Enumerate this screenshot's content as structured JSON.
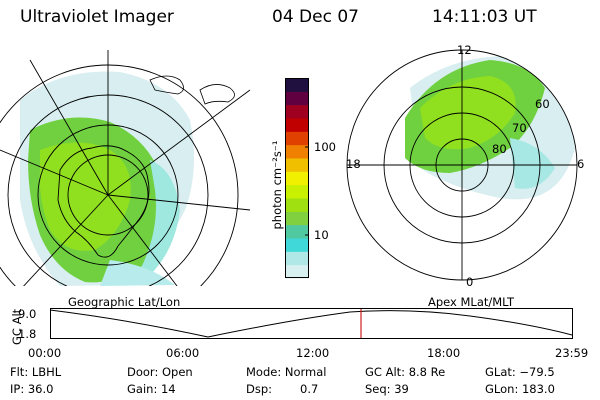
{
  "header": {
    "title": "Ultraviolet Imager",
    "date": "04 Dec 07",
    "time": "14:11:03 UT"
  },
  "left_panel": {
    "label": "Geographic Lat/Lon"
  },
  "right_panel": {
    "label": "Apex MLat/MLT",
    "mlt_labels": {
      "top": "12",
      "bottom": "0",
      "left": "18",
      "right": "6"
    },
    "lat_labels": [
      "60",
      "70",
      "80"
    ]
  },
  "colorbar": {
    "unit_text": "photon cm⁻²s⁻¹",
    "tick_labels": [
      "100",
      "10"
    ],
    "colors": [
      "#d8f0f0",
      "#b0e8e8",
      "#40d8d8",
      "#50c8a0",
      "#80d040",
      "#a0e010",
      "#c8f000",
      "#f0f000",
      "#f0c000",
      "#f08000",
      "#e04000",
      "#c00000",
      "#a00020",
      "#600040",
      "#201040"
    ]
  },
  "altitude_plot": {
    "axis_label": "GC Alt",
    "y_ticks": [
      "9.0",
      "1.8"
    ],
    "x_ticks": [
      "00:00",
      "06:00",
      "12:00",
      "18:00",
      "23:59"
    ],
    "marker_color": "#d02020"
  },
  "info": {
    "filter": "Flt: LBHL",
    "ip": "IP: 36.0",
    "door": "Door: Open",
    "gain": "Gain: 14",
    "mode": "Mode: Normal",
    "dsp_label": "Dsp:",
    "dsp_value": "0.7",
    "gc_alt": "GC Alt: 8.8 Re",
    "seq": "Seq: 39",
    "glat": "GLat: −79.5",
    "glon": "GLon: 183.0"
  }
}
